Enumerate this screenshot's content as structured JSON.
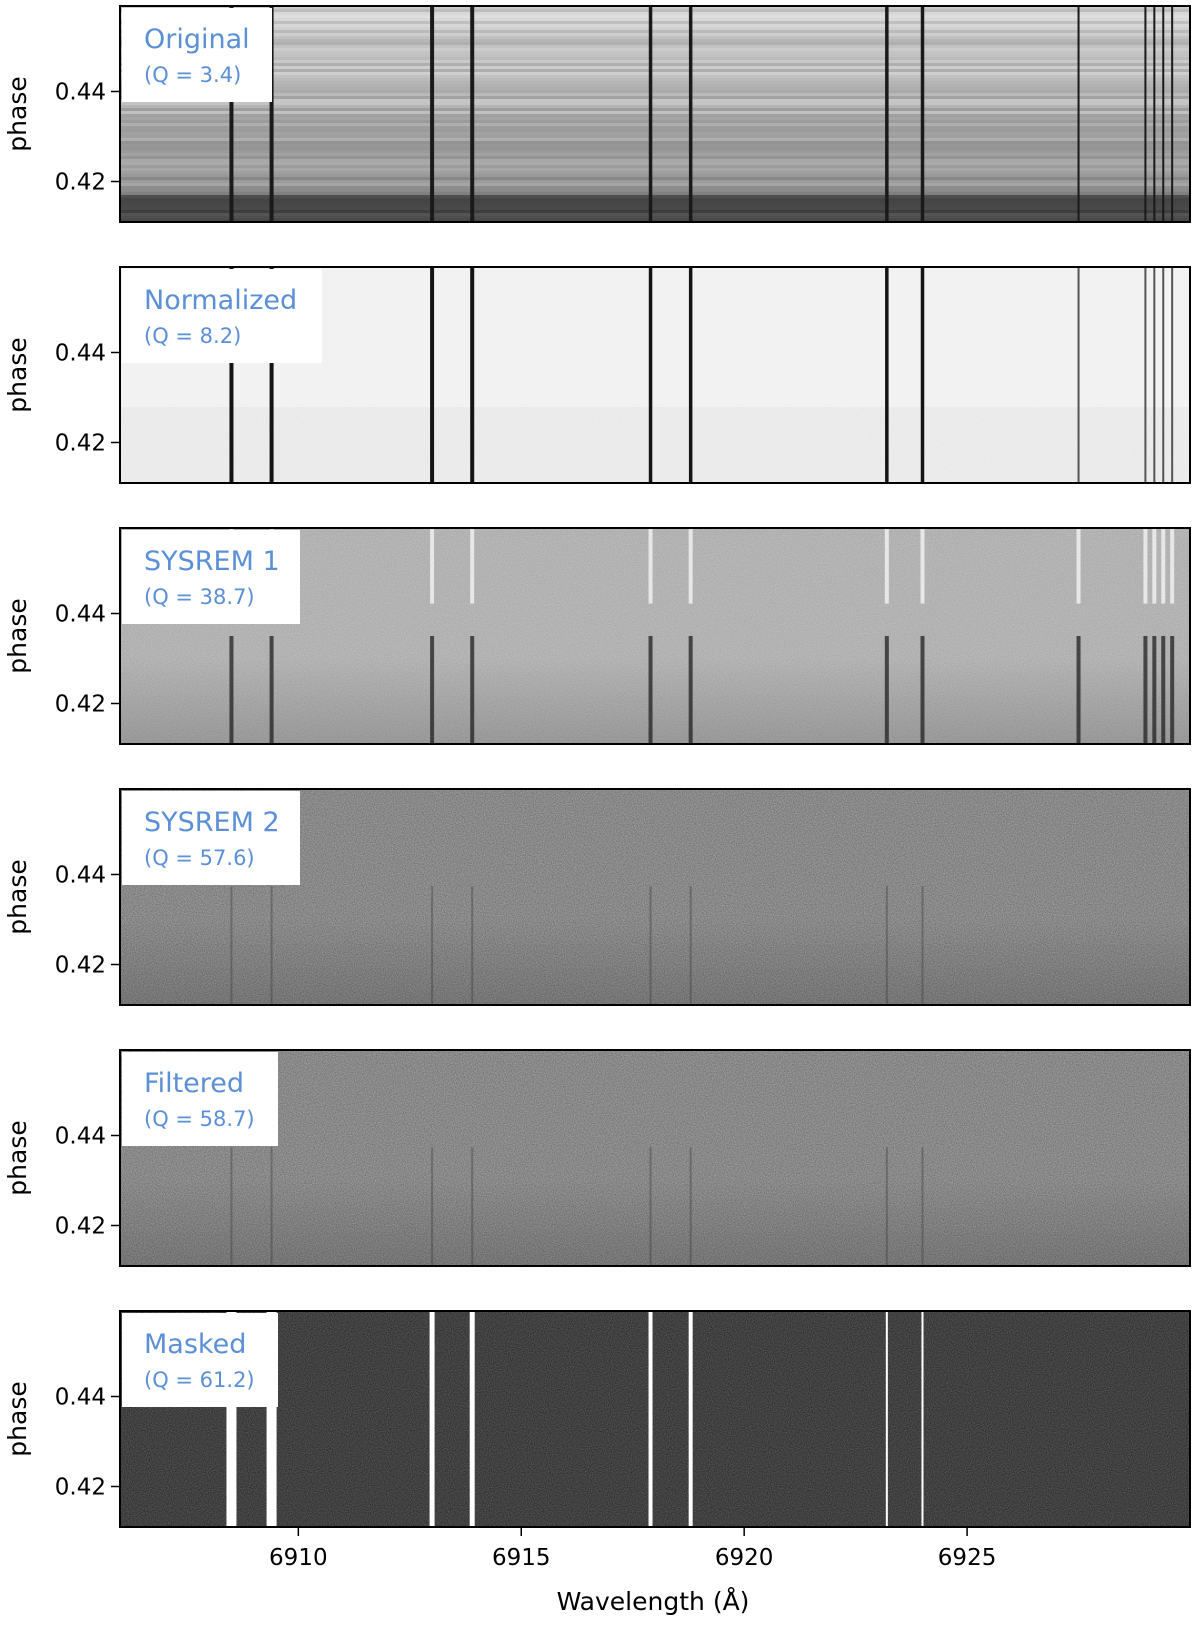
{
  "chart_data": {
    "type": "heatmap",
    "layout": "six vertically stacked panels sharing the wavelength axis",
    "xlabel": "Wavelength (Å)",
    "ylabel": "phase",
    "xlim": [
      6906.0,
      6930.0
    ],
    "ylim": [
      0.411,
      0.459
    ],
    "x_ticks": [
      6910,
      6915,
      6920,
      6925
    ],
    "x_tick_labels": [
      "6910",
      "6915",
      "6920",
      "6925"
    ],
    "y_ticks": [
      0.42,
      0.44
    ],
    "y_tick_labels": [
      "0.42",
      "0.44"
    ],
    "colormap": "grayscale",
    "telluric_lines_A": [
      6908.5,
      6909.4,
      6913.0,
      6913.9,
      6917.9,
      6918.8,
      6923.2,
      6924.0,
      6927.5,
      6929.0,
      6929.2,
      6929.4,
      6929.6
    ],
    "panels": [
      {
        "title": "Original",
        "q_label": "(Q = 3.4)",
        "Q": 3.4
      },
      {
        "title": "Normalized",
        "q_label": "(Q = 8.2)",
        "Q": 8.2
      },
      {
        "title": "SYSREM 1",
        "q_label": "(Q = 38.7)",
        "Q": 38.7
      },
      {
        "title": "SYSREM 2",
        "q_label": "(Q = 57.6)",
        "Q": 57.6
      },
      {
        "title": "Filtered",
        "q_label": "(Q = 58.7)",
        "Q": 58.7
      },
      {
        "title": "Masked",
        "q_label": "(Q = 61.2)",
        "Q": 61.2
      }
    ]
  }
}
